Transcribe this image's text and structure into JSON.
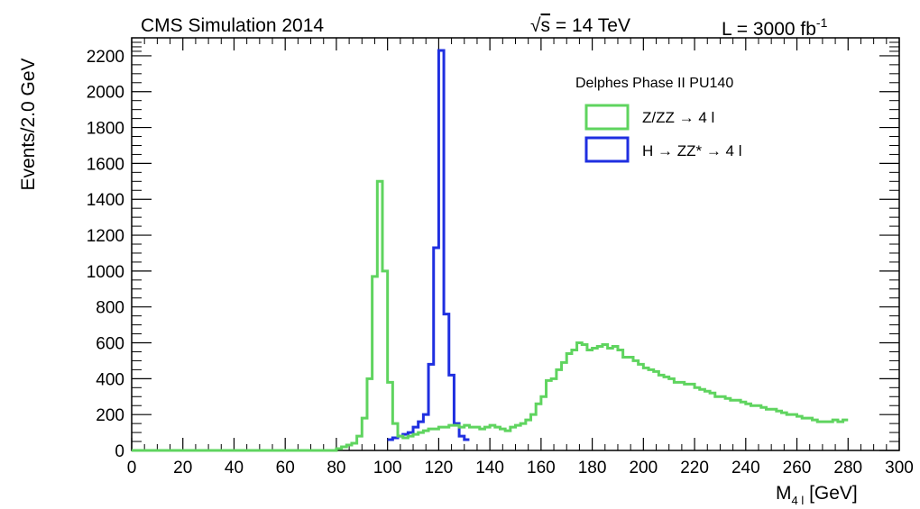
{
  "header": {
    "experiment": "CMS Simulation 2014",
    "energy_sqrt": "s",
    "energy_rest": " = 14 TeV",
    "lumi_main": "L = 3000 fb",
    "lumi_exp": "-1"
  },
  "legend": {
    "header": "Delphes Phase II PU140",
    "entries": [
      {
        "text": "Z/ZZ → 4 l"
      },
      {
        "text": "H → ZZ* → 4 l"
      }
    ]
  },
  "axes": {
    "ylabel": "Events/2.0 GeV",
    "xlabel_main": "M",
    "xlabel_sub": "4 l",
    "xlabel_unit": " [GeV]"
  },
  "chart_data": {
    "type": "line",
    "title": "CMS Simulation 2014",
    "xlabel": "M4 l [GeV]",
    "ylabel": "Events/2.0 GeV",
    "xlim": [
      0,
      300
    ],
    "ylim": [
      0,
      2300
    ],
    "bin_width": 2,
    "xticks": [
      0,
      20,
      40,
      60,
      80,
      100,
      120,
      140,
      160,
      180,
      200,
      220,
      240,
      260,
      280,
      300
    ],
    "yticks": [
      0,
      200,
      400,
      600,
      800,
      1000,
      1200,
      1400,
      1600,
      1800,
      2000,
      2200
    ],
    "series": [
      {
        "name": "Z/ZZ → 4 l",
        "color": "#5fd45f",
        "bin_edges_start": 0,
        "values": [
          0,
          0,
          0,
          0,
          0,
          0,
          0,
          0,
          0,
          0,
          0,
          0,
          0,
          0,
          0,
          0,
          0,
          0,
          0,
          0,
          0,
          0,
          0,
          0,
          0,
          0,
          0,
          0,
          0,
          0,
          0,
          0,
          0,
          0,
          0,
          0,
          0,
          0,
          0,
          0,
          10,
          20,
          30,
          40,
          80,
          180,
          400,
          970,
          1500,
          1000,
          380,
          150,
          80,
          70,
          80,
          90,
          100,
          110,
          120,
          120,
          130,
          130,
          140,
          140,
          130,
          140,
          130,
          130,
          120,
          130,
          140,
          130,
          120,
          110,
          130,
          140,
          150,
          170,
          200,
          260,
          300,
          390,
          400,
          450,
          490,
          540,
          560,
          600,
          590,
          560,
          570,
          580,
          590,
          570,
          580,
          560,
          520,
          520,
          500,
          480,
          460,
          450,
          440,
          420,
          410,
          400,
          380,
          380,
          370,
          370,
          350,
          340,
          330,
          320,
          300,
          300,
          290,
          280,
          280,
          270,
          260,
          250,
          250,
          240,
          230,
          230,
          220,
          210,
          200,
          200,
          190,
          180,
          180,
          170,
          160,
          160,
          160,
          170,
          160,
          170
        ]
      },
      {
        "name": "H → ZZ* → 4 l",
        "color": "#1f2fe0",
        "bin_edges_start": 100,
        "values": [
          60,
          70,
          80,
          90,
          100,
          130,
          160,
          200,
          480,
          1130,
          2230,
          760,
          420,
          150,
          80,
          60
        ]
      }
    ]
  }
}
